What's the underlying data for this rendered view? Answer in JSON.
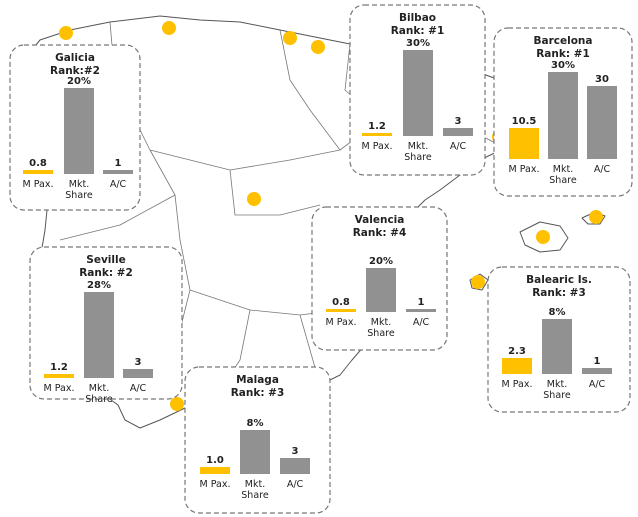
{
  "chart_data": [
    {
      "type": "bar",
      "title": "Galicia",
      "subtitle": "Rank:#2",
      "categories": [
        "M Pax.",
        "Mkt. Share",
        "A/C"
      ],
      "values": [
        0.8,
        20,
        1
      ],
      "data_labels": [
        "0.8",
        "20%",
        "1"
      ],
      "highlight": [
        true,
        false,
        false
      ]
    },
    {
      "type": "bar",
      "title": "Bilbao",
      "subtitle": "Rank: #1",
      "categories": [
        "M Pax.",
        "Mkt. Share",
        "A/C"
      ],
      "values": [
        1.2,
        30,
        3
      ],
      "data_labels": [
        "1.2",
        "30%",
        "3"
      ],
      "highlight": [
        true,
        false,
        false
      ]
    },
    {
      "type": "bar",
      "title": "Barcelona",
      "subtitle": "Rank: #1",
      "categories": [
        "M Pax.",
        "Mkt. Share",
        "A/C"
      ],
      "values": [
        10.5,
        30,
        30
      ],
      "data_labels": [
        "10.5",
        "30%",
        "30"
      ],
      "highlight": [
        true,
        false,
        false
      ]
    },
    {
      "type": "bar",
      "title": "Valencia",
      "subtitle": "Rank: #4",
      "categories": [
        "M Pax.",
        "Mkt. Share",
        "A/C"
      ],
      "values": [
        0.8,
        20,
        1
      ],
      "data_labels": [
        "0.8",
        "20%",
        "1"
      ],
      "highlight": [
        true,
        false,
        false
      ]
    },
    {
      "type": "bar",
      "title": "Seville",
      "subtitle": "Rank: #2",
      "categories": [
        "M Pax.",
        "Mkt. Share",
        "A/C"
      ],
      "values": [
        1.2,
        28,
        3
      ],
      "data_labels": [
        "1.2",
        "28%",
        "3"
      ],
      "highlight": [
        true,
        false,
        false
      ]
    },
    {
      "type": "bar",
      "title": "Malaga",
      "subtitle": "Rank: #3",
      "categories": [
        "M Pax.",
        "Mkt. Share",
        "A/C"
      ],
      "values": [
        1.0,
        8,
        3
      ],
      "data_labels": [
        "1.0",
        "8%",
        "3"
      ],
      "highlight": [
        true,
        false,
        false
      ]
    },
    {
      "type": "bar",
      "title": "Balearic Is.",
      "subtitle": "Rank: #3",
      "categories": [
        "M Pax.",
        "Mkt. Share",
        "A/C"
      ],
      "values": [
        2.3,
        8,
        1
      ],
      "data_labels": [
        "2.3",
        "8%",
        "1"
      ],
      "highlight": [
        true,
        false,
        false
      ]
    }
  ],
  "colors": {
    "highlight": "#FFC000",
    "bar": "#919191",
    "map_line": "#555555",
    "box_border": "#777777",
    "dot_airport": "#FFC000",
    "dot_other": "#808080"
  }
}
